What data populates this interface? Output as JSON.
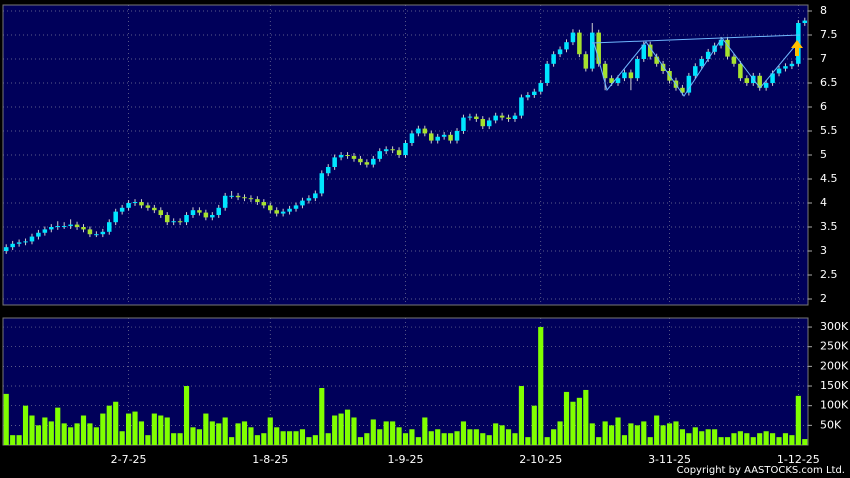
{
  "chart_data": {
    "type": "candlestick",
    "categories": [
      null,
      null,
      null,
      null,
      null,
      null,
      null,
      null,
      null,
      null,
      null,
      null,
      null,
      null,
      null,
      null,
      null,
      null,
      null,
      "2-7-25",
      null,
      null,
      null,
      null,
      null,
      null,
      null,
      null,
      null,
      null,
      null,
      null,
      null,
      null,
      null,
      null,
      null,
      null,
      null,
      null,
      null,
      "1-8-25",
      null,
      null,
      null,
      null,
      null,
      null,
      null,
      null,
      null,
      null,
      null,
      null,
      null,
      null,
      null,
      null,
      null,
      null,
      null,
      null,
      "1-9-25",
      null,
      null,
      null,
      null,
      null,
      null,
      null,
      null,
      null,
      null,
      null,
      null,
      null,
      null,
      null,
      null,
      null,
      null,
      null,
      null,
      "2-10-25",
      null,
      null,
      null,
      null,
      null,
      null,
      null,
      null,
      null,
      null,
      null,
      null,
      null,
      null,
      null,
      null,
      null,
      null,
      null,
      "3-11-25",
      null,
      null,
      null,
      null,
      null,
      null,
      null,
      null,
      null,
      null,
      null,
      null,
      null,
      null,
      null,
      null,
      null,
      null,
      null,
      "1-12-25",
      null
    ],
    "open": [
      3.0,
      3.08,
      3.15,
      3.18,
      3.2,
      3.3,
      3.38,
      3.45,
      3.5,
      3.52,
      3.52,
      3.55,
      3.5,
      3.45,
      3.35,
      3.35,
      3.4,
      3.6,
      3.82,
      3.9,
      4.0,
      4.02,
      3.95,
      3.9,
      3.85,
      3.75,
      3.6,
      3.62,
      3.6,
      3.75,
      3.85,
      3.8,
      3.7,
      3.75,
      3.9,
      4.15,
      4.15,
      4.12,
      4.1,
      4.08,
      4.02,
      3.95,
      3.85,
      3.78,
      3.82,
      3.88,
      3.95,
      4.05,
      4.1,
      4.2,
      4.62,
      4.75,
      4.95,
      5.0,
      4.98,
      4.92,
      4.85,
      4.8,
      4.92,
      5.08,
      5.12,
      5.1,
      5.0,
      5.25,
      5.45,
      5.55,
      5.45,
      5.3,
      5.38,
      5.42,
      5.3,
      5.5,
      5.78,
      5.8,
      5.75,
      5.6,
      5.72,
      5.82,
      5.78,
      5.75,
      5.82,
      6.2,
      6.25,
      6.32,
      6.5,
      6.9,
      7.1,
      7.2,
      7.35,
      7.55,
      7.1,
      6.8,
      7.55,
      6.9,
      6.6,
      6.5,
      6.6,
      6.72,
      6.6,
      7.0,
      7.3,
      7.05,
      6.9,
      6.75,
      6.55,
      6.4,
      6.3,
      6.65,
      6.85,
      7.0,
      7.15,
      7.28,
      7.4,
      7.05,
      6.9,
      6.6,
      6.5,
      6.65,
      6.4,
      6.5,
      6.7,
      6.8,
      6.85,
      6.9,
      7.75
    ],
    "high": [
      3.14,
      3.21,
      3.24,
      3.26,
      3.36,
      3.44,
      3.51,
      3.56,
      3.62,
      3.6,
      3.66,
      3.61,
      3.56,
      3.51,
      3.41,
      3.46,
      3.66,
      3.88,
      3.96,
      4.06,
      4.08,
      4.08,
      4.01,
      3.96,
      3.91,
      3.81,
      3.68,
      3.68,
      3.81,
      3.91,
      3.91,
      3.86,
      3.81,
      3.96,
      4.21,
      4.25,
      4.21,
      4.18,
      4.16,
      4.14,
      4.08,
      4.01,
      3.91,
      3.88,
      3.94,
      4.01,
      4.11,
      4.16,
      4.26,
      4.68,
      4.81,
      5.01,
      5.06,
      5.06,
      5.04,
      4.98,
      4.91,
      4.98,
      5.14,
      5.18,
      5.18,
      5.16,
      5.31,
      5.51,
      5.61,
      5.61,
      5.51,
      5.44,
      5.48,
      5.48,
      5.56,
      5.84,
      5.86,
      5.86,
      5.81,
      5.78,
      5.88,
      5.88,
      5.84,
      5.88,
      6.26,
      6.31,
      6.38,
      6.56,
      6.96,
      7.16,
      7.26,
      7.41,
      7.62,
      7.61,
      7.16,
      7.75,
      7.61,
      6.96,
      6.66,
      6.66,
      6.78,
      6.78,
      7.06,
      7.36,
      7.36,
      7.11,
      6.96,
      6.81,
      6.61,
      6.46,
      6.71,
      6.91,
      7.06,
      7.21,
      7.34,
      7.46,
      7.46,
      7.11,
      6.96,
      6.66,
      6.71,
      6.71,
      6.56,
      6.76,
      6.86,
      6.91,
      6.96,
      7.81,
      7.86
    ],
    "low": [
      2.94,
      3.02,
      3.09,
      3.12,
      3.14,
      3.24,
      3.32,
      3.39,
      3.44,
      3.46,
      3.46,
      3.44,
      3.39,
      3.29,
      3.29,
      3.29,
      3.34,
      3.54,
      3.76,
      3.84,
      3.94,
      3.89,
      3.84,
      3.79,
      3.69,
      3.54,
      3.54,
      3.54,
      3.54,
      3.69,
      3.74,
      3.64,
      3.64,
      3.69,
      3.84,
      4.09,
      4.06,
      4.04,
      4.02,
      3.96,
      3.89,
      3.79,
      3.72,
      3.72,
      3.76,
      3.82,
      3.89,
      3.99,
      4.04,
      4.14,
      4.56,
      4.69,
      4.89,
      4.92,
      4.86,
      4.79,
      4.74,
      4.74,
      4.86,
      5.02,
      5.04,
      4.94,
      4.94,
      5.19,
      5.39,
      5.39,
      5.24,
      5.24,
      5.32,
      5.24,
      5.24,
      5.44,
      5.72,
      5.69,
      5.54,
      5.54,
      5.66,
      5.72,
      5.69,
      5.69,
      5.76,
      6.14,
      6.19,
      6.26,
      6.44,
      6.84,
      7.04,
      7.14,
      7.29,
      7.04,
      6.74,
      6.74,
      6.84,
      6.35,
      6.44,
      6.44,
      6.54,
      6.35,
      6.54,
      6.94,
      6.99,
      6.84,
      6.69,
      6.49,
      6.34,
      6.24,
      6.24,
      6.59,
      6.79,
      6.94,
      7.09,
      7.22,
      6.99,
      6.84,
      6.54,
      6.44,
      6.44,
      6.34,
      6.34,
      6.44,
      6.64,
      6.74,
      6.79,
      6.84,
      7.69
    ],
    "close": [
      3.08,
      3.15,
      3.18,
      3.2,
      3.3,
      3.38,
      3.45,
      3.5,
      3.52,
      3.52,
      3.55,
      3.5,
      3.45,
      3.35,
      3.35,
      3.4,
      3.6,
      3.82,
      3.9,
      4.0,
      4.02,
      3.95,
      3.9,
      3.85,
      3.75,
      3.6,
      3.62,
      3.6,
      3.75,
      3.85,
      3.8,
      3.7,
      3.75,
      3.9,
      4.15,
      4.15,
      4.12,
      4.1,
      4.08,
      4.02,
      3.95,
      3.85,
      3.78,
      3.82,
      3.88,
      3.95,
      4.05,
      4.1,
      4.2,
      4.62,
      4.75,
      4.95,
      5.0,
      4.98,
      4.92,
      4.85,
      4.8,
      4.92,
      5.08,
      5.12,
      5.1,
      5.0,
      5.25,
      5.45,
      5.55,
      5.45,
      5.3,
      5.38,
      5.42,
      5.3,
      5.5,
      5.78,
      5.8,
      5.75,
      5.6,
      5.72,
      5.82,
      5.78,
      5.75,
      5.82,
      6.2,
      6.25,
      6.32,
      6.5,
      6.9,
      7.1,
      7.2,
      7.35,
      7.55,
      7.1,
      6.8,
      7.55,
      6.9,
      6.6,
      6.5,
      6.6,
      6.72,
      6.6,
      7.0,
      7.3,
      7.05,
      6.9,
      6.75,
      6.55,
      6.4,
      6.3,
      6.65,
      6.85,
      7.0,
      7.15,
      7.28,
      7.4,
      7.05,
      6.9,
      6.6,
      6.5,
      6.65,
      6.4,
      6.5,
      6.7,
      6.8,
      6.85,
      6.9,
      7.75,
      7.8
    ],
    "volume": [
      130000,
      25000,
      25000,
      100000,
      75000,
      50000,
      70000,
      60000,
      95000,
      55000,
      45000,
      55000,
      75000,
      55000,
      45000,
      80000,
      100000,
      110000,
      35000,
      80000,
      85000,
      60000,
      25000,
      80000,
      75000,
      70000,
      30000,
      30000,
      150000,
      45000,
      40000,
      80000,
      60000,
      55000,
      70000,
      20000,
      55000,
      60000,
      45000,
      25000,
      30000,
      70000,
      45000,
      35000,
      35000,
      35000,
      40000,
      20000,
      25000,
      145000,
      30000,
      75000,
      80000,
      90000,
      70000,
      20000,
      30000,
      65000,
      40000,
      60000,
      60000,
      45000,
      30000,
      40000,
      20000,
      70000,
      35000,
      40000,
      30000,
      30000,
      35000,
      60000,
      40000,
      40000,
      30000,
      25000,
      55000,
      50000,
      40000,
      30000,
      150000,
      20000,
      100000,
      300000,
      20000,
      40000,
      60000,
      135000,
      110000,
      120000,
      140000,
      55000,
      20000,
      60000,
      50000,
      70000,
      25000,
      55000,
      50000,
      60000,
      20000,
      75000,
      50000,
      55000,
      60000,
      40000,
      30000,
      45000,
      35000,
      40000,
      40000,
      20000,
      20000,
      30000,
      35000,
      30000,
      20000,
      30000,
      35000,
      30000,
      20000,
      30000,
      25000,
      125000,
      15000
    ],
    "ylim": [
      1.875,
      8.125
    ],
    "yticks": [
      2,
      2.5,
      3,
      3.5,
      4,
      4.5,
      5,
      5.5,
      6,
      6.5,
      7,
      7.5,
      8
    ],
    "volume_ylim": [
      0,
      323000
    ],
    "volume_ticks": [
      {
        "value": 50000,
        "label": "50K"
      },
      {
        "value": 100000,
        "label": "100K"
      },
      {
        "value": 150000,
        "label": "150K"
      },
      {
        "value": 200000,
        "label": "200K"
      },
      {
        "value": 250000,
        "label": "250K"
      },
      {
        "value": 300000,
        "label": "300K"
      }
    ],
    "up_color": "#00e5ff",
    "down_color": "#a6e22e",
    "volume_color": "#80ff00",
    "grid": true,
    "copyright": "Copyright by AASTOCKS.com Ltd."
  }
}
